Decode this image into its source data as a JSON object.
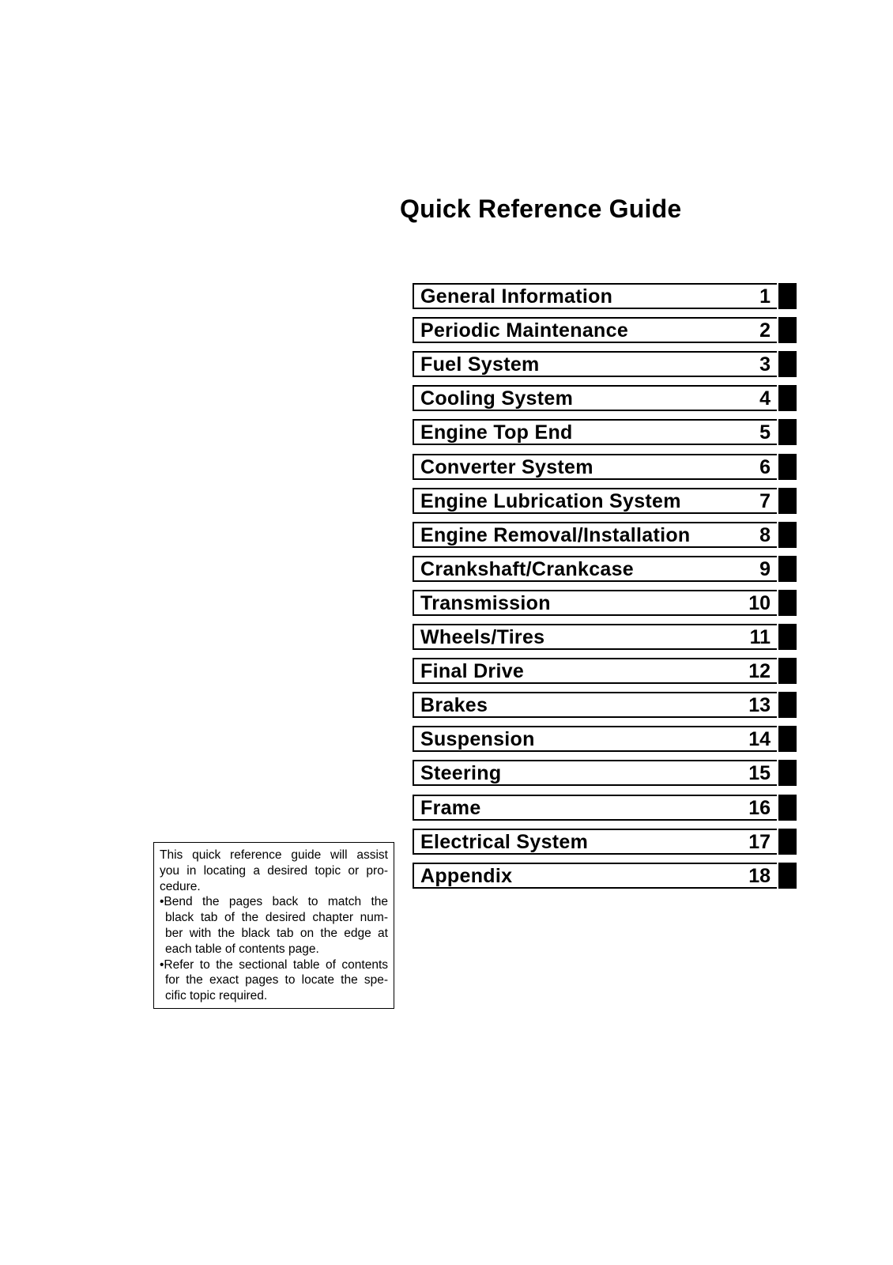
{
  "title": "Quick Reference Guide",
  "chapters": [
    {
      "label": "General Information",
      "number": "1"
    },
    {
      "label": "Periodic Maintenance",
      "number": "2"
    },
    {
      "label": "Fuel System",
      "number": "3"
    },
    {
      "label": "Cooling System",
      "number": "4"
    },
    {
      "label": "Engine Top End",
      "number": "5"
    },
    {
      "label": "Converter System",
      "number": "6"
    },
    {
      "label": "Engine Lubrication System",
      "number": "7"
    },
    {
      "label": "Engine Removal/Installation",
      "number": "8"
    },
    {
      "label": "Crankshaft/Crankcase",
      "number": "9"
    },
    {
      "label": "Transmission",
      "number": "10"
    },
    {
      "label": "Wheels/Tires",
      "number": "11"
    },
    {
      "label": "Final Drive",
      "number": "12"
    },
    {
      "label": "Brakes",
      "number": "13"
    },
    {
      "label": "Suspension",
      "number": "14"
    },
    {
      "label": "Steering",
      "number": "15"
    },
    {
      "label": "Frame",
      "number": "16"
    },
    {
      "label": "Electrical System",
      "number": "17"
    },
    {
      "label": "Appendix",
      "number": "18"
    }
  ],
  "note": {
    "lines": [
      "This quick reference guide will assist",
      "you in locating a desired topic or pro-",
      "cedure.",
      "•Bend the pages back to match the",
      "black tab of the desired chapter num-",
      "ber with the black tab on the edge at",
      "each table of contents page.",
      "•Refer to the sectional table of contents",
      "for the exact pages to locate the spe-",
      "cific topic required."
    ]
  }
}
